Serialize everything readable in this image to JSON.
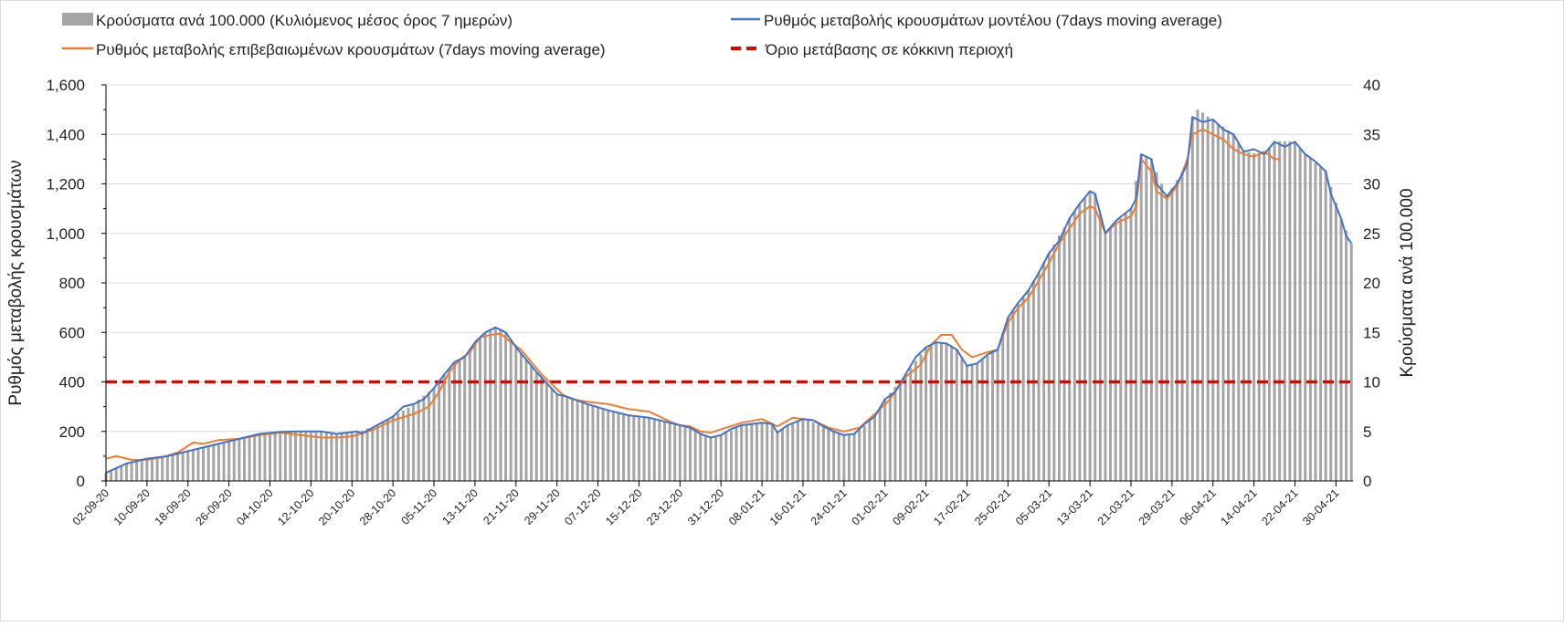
{
  "chart_data": {
    "type": "bar+line",
    "x_unit": "days since 02-09-20",
    "x_tick_labels": [
      "02-09-20",
      "10-09-20",
      "18-09-20",
      "26-09-20",
      "04-10-20",
      "12-10-20",
      "20-10-20",
      "28-10-20",
      "05-11-20",
      "13-11-20",
      "21-11-20",
      "29-11-20",
      "07-12-20",
      "15-12-20",
      "23-12-20",
      "31-12-20",
      "08-01-21",
      "16-01-21",
      "24-01-21",
      "01-02-21",
      "09-02-21",
      "17-02-21",
      "25-02-21",
      "05-03-21",
      "13-03-21",
      "21-03-21",
      "29-03-21",
      "06-04-21",
      "14-04-21",
      "22-04-21",
      "30-04-21"
    ],
    "x_tick_step_days": 8,
    "ylabel_left": "Ρυθμός μεταβολής κρουσμάτων",
    "ylabel_right": "Κρούσματα ανά 100.000",
    "ylim_left": [
      0,
      1600
    ],
    "ylim_right": [
      0,
      40
    ],
    "yticks_left": [
      "0",
      "200",
      "400",
      "600",
      "800",
      "1,000",
      "1,200",
      "1,400",
      "1,600"
    ],
    "yticks_right": [
      "0",
      "5",
      "10",
      "15",
      "20",
      "25",
      "30",
      "35",
      "40"
    ],
    "grid": true,
    "legend_position": "top",
    "colors": {
      "bars": "#a5a5a5",
      "model": "#4472c4",
      "confirmed": "#ed7d31",
      "threshold": "#e00000",
      "grid": "#d9d9d9"
    },
    "series": [
      {
        "name": "Κρούσματα ανά 100.000 (Κυλιόμενος μέσος όρος 7 ημερών)",
        "kind": "bar",
        "axis": "right",
        "values": [
          0.8,
          1.0,
          1.3,
          1.5,
          1.8,
          1.9,
          2.0,
          2.1,
          2.3,
          2.3,
          2.4,
          2.4,
          2.5,
          2.6,
          2.8,
          2.9,
          3.0,
          3.1,
          3.3,
          3.4,
          3.5,
          3.6,
          3.8,
          3.9,
          4.0,
          4.1,
          4.3,
          4.4,
          4.5,
          4.6,
          4.8,
          4.8,
          4.9,
          4.9,
          5.0,
          5.0,
          5.0,
          5.0,
          5.0,
          5.0,
          5.0,
          5.0,
          5.0,
          4.9,
          4.8,
          4.8,
          4.8,
          4.9,
          4.9,
          5.0,
          5.1,
          5.3,
          5.4,
          5.7,
          6.0,
          6.2,
          6.5,
          6.8,
          7.1,
          7.4,
          7.8,
          8.2,
          8.6,
          9.0,
          9.4,
          10.1,
          10.7,
          11.4,
          12.0,
          12.3,
          12.5,
          13.3,
          14.0,
          14.5,
          15.0,
          15.3,
          15.5,
          15.3,
          15.0,
          14.3,
          13.5,
          12.9,
          12.3,
          11.6,
          11.0,
          10.4,
          9.9,
          9.3,
          8.8,
          8.6,
          8.5,
          8.3,
          8.1,
          7.9,
          7.8,
          7.6,
          7.4,
          7.3,
          7.1,
          7.0,
          6.9,
          6.7,
          6.6,
          6.6,
          6.5,
          6.5,
          6.4,
          6.3,
          6.2,
          6.0,
          5.9,
          5.8,
          5.7,
          5.5,
          5.4,
          5.1,
          4.8,
          4.6,
          4.4,
          4.5,
          4.6,
          4.9,
          5.1,
          5.4,
          5.6,
          5.7,
          5.7,
          5.8,
          5.9,
          5.8,
          5.8,
          4.9,
          5.3,
          5.6,
          5.8,
          6.0,
          6.3,
          6.1,
          5.9,
          5.7,
          5.5,
          5.3,
          5.1,
          4.8,
          4.6,
          4.7,
          4.8,
          5.2,
          5.6,
          6.1,
          6.5,
          7.4,
          8.3,
          8.9,
          9.5,
          10.1,
          10.8,
          11.4,
          12.1,
          12.8,
          13.5,
          13.8,
          14.0,
          14.0,
          13.9,
          13.6,
          13.3,
          12.4,
          11.6,
          11.8,
          11.9,
          12.2,
          12.6,
          12.9,
          13.3,
          14.9,
          16.5,
          17.2,
          17.9,
          18.6,
          19.3,
          20.2,
          21.1,
          22.1,
          23.0,
          23.9,
          24.8,
          25.6,
          26.5,
          27.2,
          27.9,
          28.6,
          29.3,
          29.0,
          27.0,
          25.0,
          25.5,
          26.0,
          26.5,
          27.0,
          27.5,
          30.3,
          33.0,
          32.8,
          32.5,
          31.2,
          30.0,
          28.8,
          29.6,
          30.4,
          31.2,
          32.0,
          36.8,
          37.5,
          37.2,
          36.8,
          36.5,
          36.1,
          35.8,
          35.4,
          35.0,
          34.1,
          33.3,
          33.2,
          33.1,
          33.1,
          33.0,
          33.6,
          34.3,
          34.3,
          34.3,
          34.3,
          34.3,
          33.6,
          33.0,
          32.6,
          32.1,
          31.7,
          31.3,
          29.7,
          28.1,
          26.5,
          25.3,
          24.0
        ]
      },
      {
        "name": "Ρυθμός μεταβολής κρουσμάτων μοντέλου (7days moving average)",
        "kind": "line",
        "axis": "left",
        "points": [
          [
            0,
            33
          ],
          [
            4,
            70
          ],
          [
            8,
            90
          ],
          [
            12,
            100
          ],
          [
            16,
            120
          ],
          [
            20,
            140
          ],
          [
            26,
            170
          ],
          [
            30,
            190
          ],
          [
            34,
            198
          ],
          [
            38,
            200
          ],
          [
            42,
            200
          ],
          [
            45,
            190
          ],
          [
            47,
            195
          ],
          [
            49,
            200
          ],
          [
            50,
            192
          ],
          [
            52,
            215
          ],
          [
            56,
            260
          ],
          [
            58,
            300
          ],
          [
            60,
            310
          ],
          [
            62,
            330
          ],
          [
            64,
            375
          ],
          [
            66,
            430
          ],
          [
            68,
            480
          ],
          [
            70,
            500
          ],
          [
            72,
            560
          ],
          [
            74,
            600
          ],
          [
            76,
            620
          ],
          [
            78,
            600
          ],
          [
            80,
            540
          ],
          [
            82,
            490
          ],
          [
            84,
            440
          ],
          [
            86,
            395
          ],
          [
            88,
            350
          ],
          [
            90,
            340
          ],
          [
            94,
            310
          ],
          [
            98,
            285
          ],
          [
            102,
            265
          ],
          [
            106,
            255
          ],
          [
            110,
            235
          ],
          [
            112,
            225
          ],
          [
            114,
            215
          ],
          [
            116,
            190
          ],
          [
            118,
            175
          ],
          [
            120,
            185
          ],
          [
            122,
            210
          ],
          [
            124,
            225
          ],
          [
            128,
            235
          ],
          [
            130,
            230
          ],
          [
            131,
            195
          ],
          [
            133,
            225
          ],
          [
            136,
            250
          ],
          [
            138,
            245
          ],
          [
            140,
            220
          ],
          [
            142,
            200
          ],
          [
            144,
            185
          ],
          [
            146,
            190
          ],
          [
            148,
            230
          ],
          [
            150,
            260
          ],
          [
            152,
            330
          ],
          [
            154,
            360
          ],
          [
            156,
            430
          ],
          [
            158,
            500
          ],
          [
            160,
            540
          ],
          [
            162,
            560
          ],
          [
            164,
            555
          ],
          [
            166,
            530
          ],
          [
            168,
            465
          ],
          [
            170,
            475
          ],
          [
            172,
            510
          ],
          [
            174,
            530
          ],
          [
            176,
            660
          ],
          [
            178,
            720
          ],
          [
            180,
            770
          ],
          [
            182,
            840
          ],
          [
            184,
            920
          ],
          [
            186,
            970
          ],
          [
            188,
            1060
          ],
          [
            190,
            1120
          ],
          [
            192,
            1170
          ],
          [
            193,
            1160
          ],
          [
            195,
            1000
          ],
          [
            197,
            1050
          ],
          [
            200,
            1100
          ],
          [
            201,
            1140
          ],
          [
            202,
            1320
          ],
          [
            204,
            1300
          ],
          [
            205,
            1200
          ],
          [
            207,
            1150
          ],
          [
            209,
            1200
          ],
          [
            211,
            1280
          ],
          [
            212,
            1470
          ],
          [
            214,
            1450
          ],
          [
            216,
            1460
          ],
          [
            218,
            1420
          ],
          [
            220,
            1400
          ],
          [
            222,
            1330
          ],
          [
            224,
            1340
          ],
          [
            226,
            1320
          ],
          [
            228,
            1370
          ],
          [
            230,
            1350
          ],
          [
            232,
            1370
          ],
          [
            234,
            1320
          ],
          [
            236,
            1290
          ],
          [
            238,
            1250
          ],
          [
            239,
            1160
          ],
          [
            241,
            1060
          ],
          [
            242,
            990
          ],
          [
            243,
            960
          ]
        ]
      },
      {
        "name": "Ρυθμός μεταβολής επιβεβαιωμένων κρουσμάτων (7days moving average)",
        "kind": "line",
        "axis": "left",
        "points": [
          [
            0,
            90
          ],
          [
            2,
            100
          ],
          [
            5,
            85
          ],
          [
            8,
            85
          ],
          [
            11,
            95
          ],
          [
            14,
            115
          ],
          [
            17,
            155
          ],
          [
            19,
            150
          ],
          [
            22,
            165
          ],
          [
            26,
            170
          ],
          [
            30,
            185
          ],
          [
            34,
            195
          ],
          [
            38,
            185
          ],
          [
            42,
            175
          ],
          [
            45,
            175
          ],
          [
            48,
            180
          ],
          [
            52,
            205
          ],
          [
            56,
            245
          ],
          [
            60,
            270
          ],
          [
            63,
            300
          ],
          [
            65,
            360
          ],
          [
            67,
            440
          ],
          [
            69,
            490
          ],
          [
            71,
            520
          ],
          [
            73,
            580
          ],
          [
            75,
            590
          ],
          [
            77,
            595
          ],
          [
            79,
            560
          ],
          [
            81,
            530
          ],
          [
            83,
            480
          ],
          [
            85,
            430
          ],
          [
            87,
            390
          ],
          [
            89,
            350
          ],
          [
            91,
            330
          ],
          [
            94,
            320
          ],
          [
            98,
            310
          ],
          [
            102,
            290
          ],
          [
            106,
            280
          ],
          [
            110,
            240
          ],
          [
            112,
            225
          ],
          [
            114,
            220
          ],
          [
            116,
            200
          ],
          [
            118,
            195
          ],
          [
            121,
            215
          ],
          [
            124,
            235
          ],
          [
            128,
            250
          ],
          [
            131,
            220
          ],
          [
            134,
            255
          ],
          [
            138,
            245
          ],
          [
            141,
            215
          ],
          [
            144,
            200
          ],
          [
            147,
            215
          ],
          [
            150,
            270
          ],
          [
            153,
            330
          ],
          [
            156,
            420
          ],
          [
            159,
            470
          ],
          [
            161,
            550
          ],
          [
            163,
            590
          ],
          [
            165,
            590
          ],
          [
            167,
            530
          ],
          [
            169,
            500
          ],
          [
            172,
            520
          ],
          [
            174,
            530
          ],
          [
            176,
            640
          ],
          [
            178,
            700
          ],
          [
            180,
            740
          ],
          [
            182,
            810
          ],
          [
            184,
            880
          ],
          [
            186,
            960
          ],
          [
            188,
            1020
          ],
          [
            190,
            1080
          ],
          [
            192,
            1110
          ],
          [
            193,
            1100
          ],
          [
            195,
            1000
          ],
          [
            197,
            1040
          ],
          [
            200,
            1070
          ],
          [
            201,
            1110
          ],
          [
            202,
            1300
          ],
          [
            204,
            1250
          ],
          [
            205,
            1170
          ],
          [
            207,
            1140
          ],
          [
            209,
            1190
          ],
          [
            211,
            1300
          ],
          [
            212,
            1400
          ],
          [
            214,
            1420
          ],
          [
            216,
            1400
          ],
          [
            218,
            1380
          ],
          [
            220,
            1340
          ],
          [
            222,
            1320
          ],
          [
            224,
            1310
          ],
          [
            226,
            1330
          ],
          [
            228,
            1300
          ],
          [
            229,
            1300
          ]
        ]
      },
      {
        "name": "Όριο μετάβασης σε κόκκινη περιοχή",
        "kind": "hline",
        "axis": "left",
        "value": 400
      }
    ]
  }
}
